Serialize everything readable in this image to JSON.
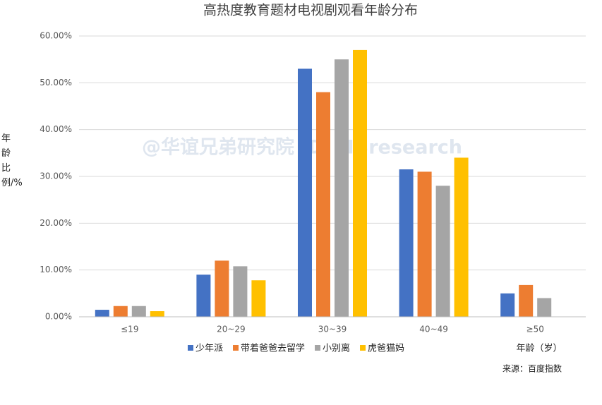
{
  "chart_data": {
    "type": "bar",
    "title": "高热度教育题材电视剧观看年龄分布",
    "y_label": "年龄比例/%",
    "x_label": "年龄（岁）",
    "source": "来源：百度指数",
    "watermark": "@华谊兄弟研究院 ID: HBresearch",
    "categories": [
      "≤19",
      "20~29",
      "30~39",
      "40~49",
      "≥50"
    ],
    "series": [
      {
        "name": "少年派",
        "color": "#4472c4",
        "values": [
          1.5,
          9,
          53,
          31.5,
          5
        ]
      },
      {
        "name": "带着爸爸去留学",
        "color": "#ed7d31",
        "values": [
          2.3,
          12,
          48,
          31,
          6.8
        ]
      },
      {
        "name": "小别离",
        "color": "#a5a5a5",
        "values": [
          2.3,
          10.8,
          55,
          28,
          4
        ]
      },
      {
        "name": "虎爸猫妈",
        "color": "#ffc000",
        "values": [
          1.2,
          7.8,
          57,
          34,
          null
        ]
      }
    ],
    "ylim": [
      0,
      60
    ],
    "yticks": [
      {
        "value": 0,
        "label": "0.00%"
      },
      {
        "value": 10,
        "label": "10.00%"
      },
      {
        "value": 20,
        "label": "20.00%"
      },
      {
        "value": 30,
        "label": "30.00%"
      },
      {
        "value": 40,
        "label": "40.00%"
      },
      {
        "value": 50,
        "label": "50.00%"
      },
      {
        "value": 60,
        "label": "60.00%"
      }
    ],
    "grid": true
  }
}
